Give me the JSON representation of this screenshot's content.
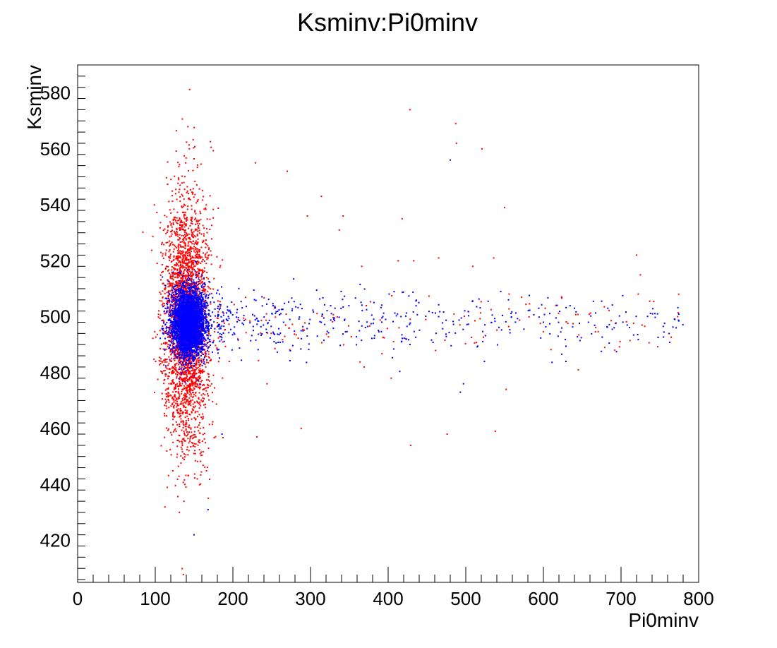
{
  "chart_data": {
    "type": "scatter",
    "title": "Ksminv:Pi0minv",
    "xlabel": "Pi0minv",
    "ylabel": "Ksminv",
    "xlim": [
      0,
      800
    ],
    "ylim": [
      405,
      590
    ],
    "xticks": [
      0,
      100,
      200,
      300,
      400,
      500,
      600,
      700,
      800
    ],
    "yticks": [
      420,
      440,
      460,
      480,
      500,
      520,
      540,
      560,
      580
    ],
    "grid": false,
    "legend": "none",
    "series": [
      {
        "color": "#ff0000",
        "core": {
          "x_center": 140,
          "x_spread": 14,
          "y_center": 498,
          "y_spread": 22,
          "count": 3200
        },
        "tail": {
          "y_center": 497,
          "y_spread": 6,
          "count": 140
        },
        "points": [
          [
            428,
            574
          ],
          [
            487,
            569
          ],
          [
            488,
            562
          ],
          [
            521,
            560
          ],
          [
            229,
            555
          ],
          [
            270,
            552
          ],
          [
            550,
            539
          ],
          [
            314,
            543
          ],
          [
            418,
            535
          ],
          [
            342,
            536
          ],
          [
            296,
            536
          ],
          [
            337,
            531
          ],
          [
            720,
            522
          ],
          [
            536,
            521
          ],
          [
            465,
            521
          ],
          [
            509,
            518
          ],
          [
            413,
            520
          ],
          [
            433,
            520
          ],
          [
            366,
            518
          ],
          [
            476,
            458
          ],
          [
            538,
            459
          ],
          [
            288,
            460
          ],
          [
            429,
            454
          ],
          [
            552,
            474
          ],
          [
            645,
            481
          ],
          [
            679,
            489
          ],
          [
            692,
            488
          ],
          [
            773,
            500
          ],
          [
            727,
            497
          ],
          [
            616,
            504
          ],
          [
            572,
            507
          ],
          [
            369,
            482
          ],
          [
            404,
            478
          ],
          [
            244,
            476
          ],
          [
            231,
            457
          ]
        ]
      },
      {
        "color": "#0000ff",
        "core": {
          "x_center": 143,
          "x_spread": 11,
          "y_center": 498,
          "y_spread": 6,
          "count": 3800
        },
        "tail": {
          "y_center": 498,
          "y_spread": 5,
          "count": 420
        },
        "points": [
          [
            480,
            556
          ],
          [
            150,
            422
          ],
          [
            168,
            431
          ],
          [
            493,
            473
          ],
          [
            497,
            476
          ],
          [
            524,
            484
          ],
          [
            629,
            484
          ],
          [
            640,
            503
          ],
          [
            683,
            503
          ],
          [
            708,
            497
          ],
          [
            747,
            501
          ],
          [
            771,
            496
          ],
          [
            545,
            509
          ],
          [
            555,
            506
          ],
          [
            594,
            503
          ],
          [
            600,
            498
          ],
          [
            658,
            498
          ],
          [
            619,
            493
          ],
          [
            186,
            458
          ]
        ]
      }
    ]
  }
}
